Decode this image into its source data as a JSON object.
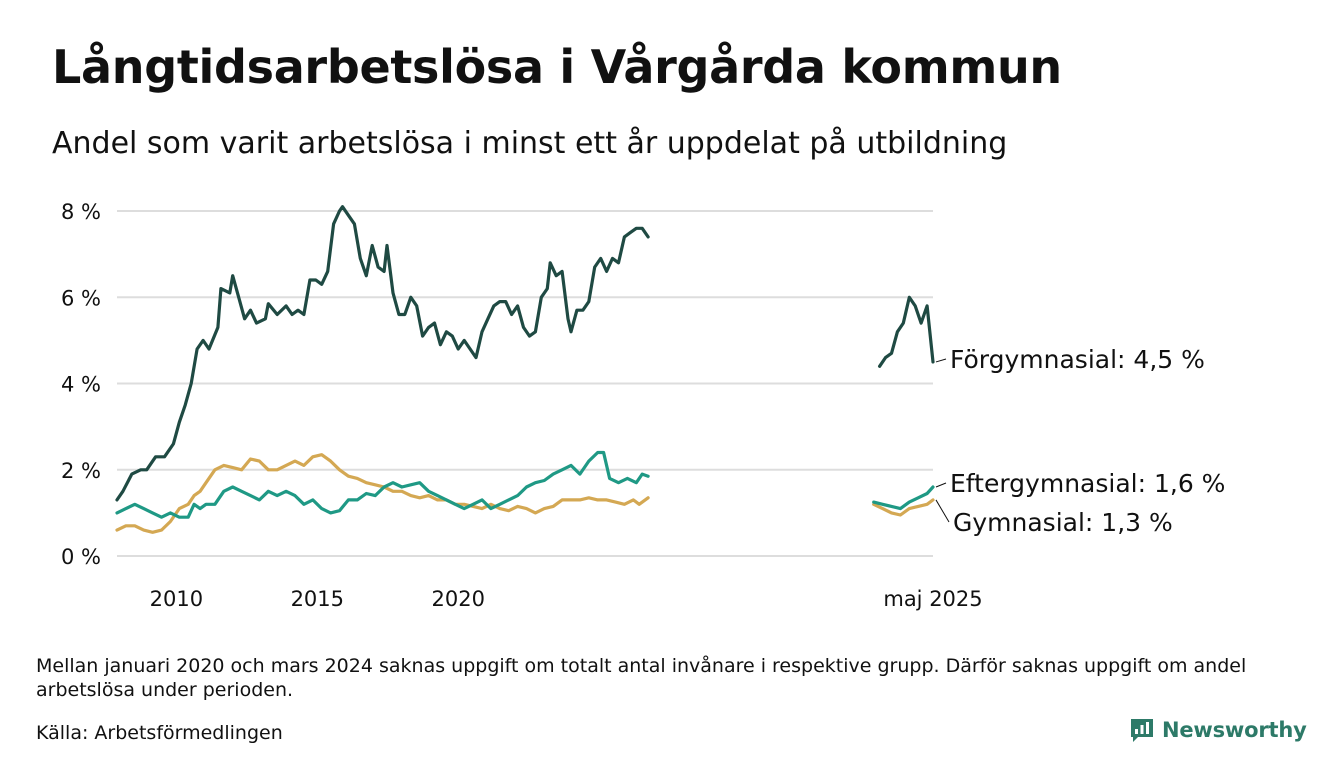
{
  "header": {
    "title": "Långtidsarbetslösa i Vårgårda kommun",
    "subtitle": "Andel som varit arbetslösa i minst ett år uppdelat på utbildning"
  },
  "footer": {
    "note": "Mellan januari 2020 och mars 2024 saknas uppgift om totalt antal invånare i respektive grupp. Därför saknas uppgift om andel arbetslösa under perioden.",
    "source": "Källa: Arbetsförmedlingen",
    "brand": "Newsworthy",
    "brand_icon": "newsworthy-logo-icon"
  },
  "colors": {
    "forgymnasial": "#1f4a43",
    "eftergymnasial": "#1f9985",
    "gymnasial": "#d4a853",
    "grid": "#dddddd",
    "brand": "#2d7a68"
  },
  "chart_data": {
    "type": "line",
    "x_unit": "decimal year",
    "x_ticks": [
      {
        "value": 2010,
        "label": "2010"
      },
      {
        "value": 2015,
        "label": "2015"
      },
      {
        "value": 2020,
        "label": "2020"
      },
      {
        "value": 2025.37,
        "label": "maj 2025"
      }
    ],
    "y_ticks": [
      {
        "value": 0,
        "label": "0 %"
      },
      {
        "value": 2,
        "label": "2 %"
      },
      {
        "value": 4,
        "label": "4 %"
      },
      {
        "value": 6,
        "label": "6 %"
      },
      {
        "value": 8,
        "label": "8 %"
      }
    ],
    "ylim": [
      0,
      8
    ],
    "grid": true,
    "legend": "direct labels at line ends (right)",
    "end_labels": [
      {
        "series": "Förgymnasial",
        "text": "Förgymnasial: 4,5 %"
      },
      {
        "series": "Eftergymnasial",
        "text": "Eftergymnasial: 1,6 %"
      },
      {
        "series": "Gymnasial",
        "text": "Gymnasial: 1,3 %"
      }
    ],
    "series": [
      {
        "name": "Förgymnasial",
        "segments": [
          [
            [
              2008.0,
              1.3
            ],
            [
              2008.2,
              1.5
            ],
            [
              2008.5,
              1.9
            ],
            [
              2008.8,
              2.0
            ],
            [
              2009.0,
              2.0
            ],
            [
              2009.3,
              2.3
            ],
            [
              2009.6,
              2.3
            ],
            [
              2009.9,
              2.6
            ],
            [
              2010.1,
              3.1
            ],
            [
              2010.3,
              3.5
            ],
            [
              2010.5,
              4.0
            ],
            [
              2010.7,
              4.8
            ],
            [
              2010.9,
              5.0
            ],
            [
              2011.1,
              4.8
            ],
            [
              2011.4,
              5.3
            ],
            [
              2011.5,
              6.2
            ],
            [
              2011.8,
              6.1
            ],
            [
              2011.9,
              6.5
            ],
            [
              2012.1,
              6.0
            ],
            [
              2012.3,
              5.5
            ],
            [
              2012.5,
              5.7
            ],
            [
              2012.7,
              5.4
            ],
            [
              2013.0,
              5.5
            ],
            [
              2013.1,
              5.85
            ],
            [
              2013.4,
              5.6
            ],
            [
              2013.7,
              5.8
            ],
            [
              2013.9,
              5.6
            ],
            [
              2014.1,
              5.7
            ],
            [
              2014.3,
              5.6
            ],
            [
              2014.5,
              6.4
            ],
            [
              2014.7,
              6.4
            ],
            [
              2014.9,
              6.3
            ],
            [
              2015.1,
              6.6
            ],
            [
              2015.3,
              7.7
            ],
            [
              2015.5,
              8.0
            ],
            [
              2015.6,
              8.1
            ],
            [
              2015.8,
              7.9
            ],
            [
              2016.0,
              7.7
            ],
            [
              2016.2,
              6.9
            ],
            [
              2016.4,
              6.5
            ],
            [
              2016.6,
              7.2
            ],
            [
              2016.8,
              6.7
            ],
            [
              2017.0,
              6.6
            ],
            [
              2017.1,
              7.2
            ],
            [
              2017.3,
              6.1
            ],
            [
              2017.5,
              5.6
            ],
            [
              2017.7,
              5.6
            ],
            [
              2017.9,
              6.0
            ],
            [
              2018.1,
              5.8
            ],
            [
              2018.3,
              5.1
            ],
            [
              2018.5,
              5.3
            ],
            [
              2018.7,
              5.4
            ],
            [
              2018.9,
              4.9
            ],
            [
              2019.1,
              5.2
            ],
            [
              2019.3,
              5.1
            ],
            [
              2019.5,
              4.8
            ],
            [
              2019.7,
              5.0
            ],
            [
              2019.9,
              4.8
            ],
            [
              2020.1,
              4.6
            ],
            [
              2020.3,
              5.2
            ],
            [
              2020.5,
              5.5
            ],
            [
              2020.7,
              5.8
            ],
            [
              2020.9,
              5.9
            ],
            [
              2021.1,
              5.9
            ],
            [
              2021.3,
              5.6
            ],
            [
              2021.5,
              5.8
            ],
            [
              2021.7,
              5.3
            ],
            [
              2021.9,
              5.1
            ],
            [
              2022.1,
              5.2
            ],
            [
              2022.3,
              6.0
            ],
            [
              2022.5,
              6.2
            ],
            [
              2022.6,
              6.8
            ],
            [
              2022.8,
              6.5
            ],
            [
              2023.0,
              6.6
            ],
            [
              2023.2,
              5.5
            ],
            [
              2023.3,
              5.2
            ],
            [
              2023.5,
              5.7
            ],
            [
              2023.7,
              5.7
            ],
            [
              2023.9,
              5.9
            ],
            [
              2024.1,
              6.7
            ],
            [
              2024.3,
              6.9
            ],
            [
              2024.5,
              6.6
            ],
            [
              2024.7,
              6.9
            ],
            [
              2024.9,
              6.8
            ],
            [
              2025.1,
              7.4
            ],
            [
              2025.3,
              7.5
            ],
            [
              2025.5,
              7.6
            ],
            [
              2025.7,
              7.6
            ],
            [
              2025.9,
              7.4
            ]
          ],
          [
            [
              2033.7,
              4.4
            ],
            [
              2033.9,
              4.6
            ],
            [
              2034.1,
              4.7
            ],
            [
              2034.3,
              5.2
            ],
            [
              2034.5,
              5.4
            ],
            [
              2034.7,
              6.0
            ],
            [
              2034.9,
              5.8
            ],
            [
              2035.1,
              5.4
            ],
            [
              2035.3,
              5.8
            ],
            [
              2035.5,
              4.5
            ]
          ]
        ]
      },
      {
        "name": "Eftergymnasial",
        "segments": [
          [
            [
              2008.0,
              1.0
            ],
            [
              2008.3,
              1.1
            ],
            [
              2008.6,
              1.2
            ],
            [
              2008.9,
              1.1
            ],
            [
              2009.2,
              1.0
            ],
            [
              2009.5,
              0.9
            ],
            [
              2009.8,
              1.0
            ],
            [
              2010.1,
              0.9
            ],
            [
              2010.4,
              0.9
            ],
            [
              2010.6,
              1.2
            ],
            [
              2010.8,
              1.1
            ],
            [
              2011.0,
              1.2
            ],
            [
              2011.3,
              1.2
            ],
            [
              2011.6,
              1.5
            ],
            [
              2011.9,
              1.6
            ],
            [
              2012.2,
              1.5
            ],
            [
              2012.5,
              1.4
            ],
            [
              2012.8,
              1.3
            ],
            [
              2013.1,
              1.5
            ],
            [
              2013.4,
              1.4
            ],
            [
              2013.7,
              1.5
            ],
            [
              2014.0,
              1.4
            ],
            [
              2014.3,
              1.2
            ],
            [
              2014.6,
              1.3
            ],
            [
              2014.9,
              1.1
            ],
            [
              2015.2,
              1.0
            ],
            [
              2015.5,
              1.05
            ],
            [
              2015.8,
              1.3
            ],
            [
              2016.1,
              1.3
            ],
            [
              2016.4,
              1.45
            ],
            [
              2016.7,
              1.4
            ],
            [
              2017.0,
              1.6
            ],
            [
              2017.3,
              1.7
            ],
            [
              2017.6,
              1.6
            ],
            [
              2017.9,
              1.65
            ],
            [
              2018.2,
              1.7
            ],
            [
              2018.5,
              1.5
            ],
            [
              2018.8,
              1.4
            ],
            [
              2019.1,
              1.3
            ],
            [
              2019.4,
              1.2
            ],
            [
              2019.7,
              1.1
            ],
            [
              2020.0,
              1.2
            ],
            [
              2020.3,
              1.3
            ],
            [
              2020.6,
              1.1
            ],
            [
              2020.9,
              1.2
            ],
            [
              2021.2,
              1.3
            ],
            [
              2021.5,
              1.4
            ],
            [
              2021.8,
              1.6
            ],
            [
              2022.1,
              1.7
            ],
            [
              2022.4,
              1.75
            ],
            [
              2022.7,
              1.9
            ],
            [
              2023.0,
              2.0
            ],
            [
              2023.3,
              2.1
            ],
            [
              2023.6,
              1.9
            ],
            [
              2023.9,
              2.2
            ],
            [
              2024.2,
              2.4
            ],
            [
              2024.4,
              2.4
            ],
            [
              2024.6,
              1.8
            ],
            [
              2024.9,
              1.7
            ],
            [
              2025.2,
              1.8
            ],
            [
              2025.5,
              1.7
            ],
            [
              2025.7,
              1.9
            ],
            [
              2025.9,
              1.85
            ]
          ],
          [
            [
              2033.5,
              1.25
            ],
            [
              2033.8,
              1.2
            ],
            [
              2034.1,
              1.15
            ],
            [
              2034.4,
              1.1
            ],
            [
              2034.7,
              1.25
            ],
            [
              2035.0,
              1.35
            ],
            [
              2035.3,
              1.45
            ],
            [
              2035.5,
              1.6
            ]
          ]
        ]
      },
      {
        "name": "Gymnasial",
        "segments": [
          [
            [
              2008.0,
              0.6
            ],
            [
              2008.3,
              0.7
            ],
            [
              2008.6,
              0.7
            ],
            [
              2008.9,
              0.6
            ],
            [
              2009.2,
              0.55
            ],
            [
              2009.5,
              0.6
            ],
            [
              2009.8,
              0.8
            ],
            [
              2010.1,
              1.1
            ],
            [
              2010.4,
              1.2
            ],
            [
              2010.6,
              1.4
            ],
            [
              2010.8,
              1.5
            ],
            [
              2011.0,
              1.7
            ],
            [
              2011.3,
              2.0
            ],
            [
              2011.6,
              2.1
            ],
            [
              2011.9,
              2.05
            ],
            [
              2012.2,
              2.0
            ],
            [
              2012.5,
              2.25
            ],
            [
              2012.8,
              2.2
            ],
            [
              2013.1,
              2.0
            ],
            [
              2013.4,
              2.0
            ],
            [
              2013.7,
              2.1
            ],
            [
              2014.0,
              2.2
            ],
            [
              2014.3,
              2.1
            ],
            [
              2014.6,
              2.3
            ],
            [
              2014.9,
              2.35
            ],
            [
              2015.2,
              2.2
            ],
            [
              2015.5,
              2.0
            ],
            [
              2015.8,
              1.85
            ],
            [
              2016.1,
              1.8
            ],
            [
              2016.4,
              1.7
            ],
            [
              2016.7,
              1.65
            ],
            [
              2017.0,
              1.6
            ],
            [
              2017.3,
              1.5
            ],
            [
              2017.6,
              1.5
            ],
            [
              2017.9,
              1.4
            ],
            [
              2018.2,
              1.35
            ],
            [
              2018.5,
              1.4
            ],
            [
              2018.8,
              1.3
            ],
            [
              2019.1,
              1.3
            ],
            [
              2019.4,
              1.2
            ],
            [
              2019.7,
              1.2
            ],
            [
              2020.0,
              1.15
            ],
            [
              2020.3,
              1.1
            ],
            [
              2020.6,
              1.2
            ],
            [
              2020.9,
              1.1
            ],
            [
              2021.2,
              1.05
            ],
            [
              2021.5,
              1.15
            ],
            [
              2021.8,
              1.1
            ],
            [
              2022.1,
              1.0
            ],
            [
              2022.4,
              1.1
            ],
            [
              2022.7,
              1.15
            ],
            [
              2023.0,
              1.3
            ],
            [
              2023.3,
              1.3
            ],
            [
              2023.6,
              1.3
            ],
            [
              2023.9,
              1.35
            ],
            [
              2024.2,
              1.3
            ],
            [
              2024.5,
              1.3
            ],
            [
              2024.8,
              1.25
            ],
            [
              2025.1,
              1.2
            ],
            [
              2025.4,
              1.3
            ],
            [
              2025.6,
              1.2
            ],
            [
              2025.9,
              1.35
            ]
          ],
          [
            [
              2033.5,
              1.2
            ],
            [
              2033.8,
              1.1
            ],
            [
              2034.1,
              1.0
            ],
            [
              2034.4,
              0.95
            ],
            [
              2034.7,
              1.1
            ],
            [
              2035.0,
              1.15
            ],
            [
              2035.3,
              1.2
            ],
            [
              2035.5,
              1.3
            ]
          ]
        ]
      }
    ]
  }
}
